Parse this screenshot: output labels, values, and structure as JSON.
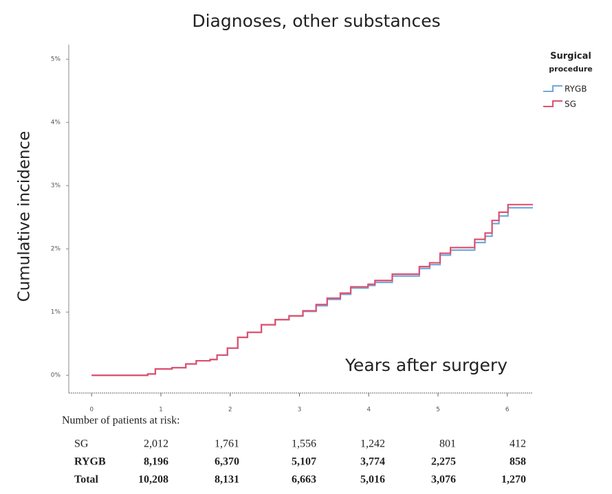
{
  "chart_data": {
    "type": "line",
    "step": "post",
    "title": "Diagnoses, other substances",
    "y_label": "Cumulative incidence",
    "annotation": "Years after surgery",
    "legend_title": [
      "Surgical",
      "procedure"
    ],
    "legend_position": "top-right",
    "x": [
      0,
      0.81,
      0.92,
      1.16,
      1.36,
      1.51,
      1.71,
      1.81,
      1.96,
      2.11,
      2.25,
      2.45,
      2.65,
      2.85,
      3.05,
      3.24,
      3.4,
      3.59,
      3.74,
      3.99,
      4.09,
      4.34,
      4.73,
      4.88,
      5.03,
      5.18,
      5.53,
      5.68,
      5.78,
      5.88,
      6.01,
      6.37
    ],
    "series": [
      {
        "name": "RYGB",
        "color": "#6fa8dc",
        "values": [
          0,
          0.02,
          0.1,
          0.12,
          0.18,
          0.23,
          0.25,
          0.32,
          0.43,
          0.6,
          0.68,
          0.8,
          0.88,
          0.94,
          1.01,
          1.1,
          1.2,
          1.28,
          1.38,
          1.42,
          1.47,
          1.57,
          1.69,
          1.75,
          1.9,
          1.98,
          2.1,
          2.2,
          2.4,
          2.52,
          2.65,
          2.65
        ]
      },
      {
        "name": "SG",
        "color": "#e0506e",
        "values": [
          0,
          0.02,
          0.1,
          0.12,
          0.18,
          0.23,
          0.25,
          0.32,
          0.43,
          0.6,
          0.68,
          0.8,
          0.88,
          0.94,
          1.02,
          1.12,
          1.22,
          1.3,
          1.4,
          1.44,
          1.5,
          1.6,
          1.72,
          1.78,
          1.93,
          2.02,
          2.15,
          2.25,
          2.45,
          2.58,
          2.7,
          2.7
        ]
      }
    ],
    "xlim": [
      -0.33,
      6.37
    ],
    "xticks": [
      0,
      1,
      2,
      3,
      4,
      5,
      6
    ],
    "ylim": [
      -0.28,
      5.23
    ],
    "yticks": [
      {
        "value": 0,
        "label": "0%"
      },
      {
        "value": 1,
        "label": "1%"
      },
      {
        "value": 2,
        "label": "2%"
      },
      {
        "value": 3,
        "label": "3%"
      },
      {
        "value": 4,
        "label": "4%"
      },
      {
        "value": 5,
        "label": "5%"
      }
    ],
    "grid": false,
    "risk_table": {
      "title": "Number of patients at risk:",
      "rows": [
        {
          "label": "SG",
          "values": [
            "2,012",
            "1,761",
            "1,556",
            "1,242",
            "801",
            "412"
          ]
        },
        {
          "label": "RYGB",
          "values": [
            "8,196",
            "6,370",
            "5,107",
            "3,774",
            "2,275",
            "858"
          ]
        },
        {
          "label": "Total",
          "values": [
            "10,208",
            "8,131",
            "6,663",
            "5,016",
            "3,076",
            "1,270"
          ]
        }
      ]
    }
  }
}
